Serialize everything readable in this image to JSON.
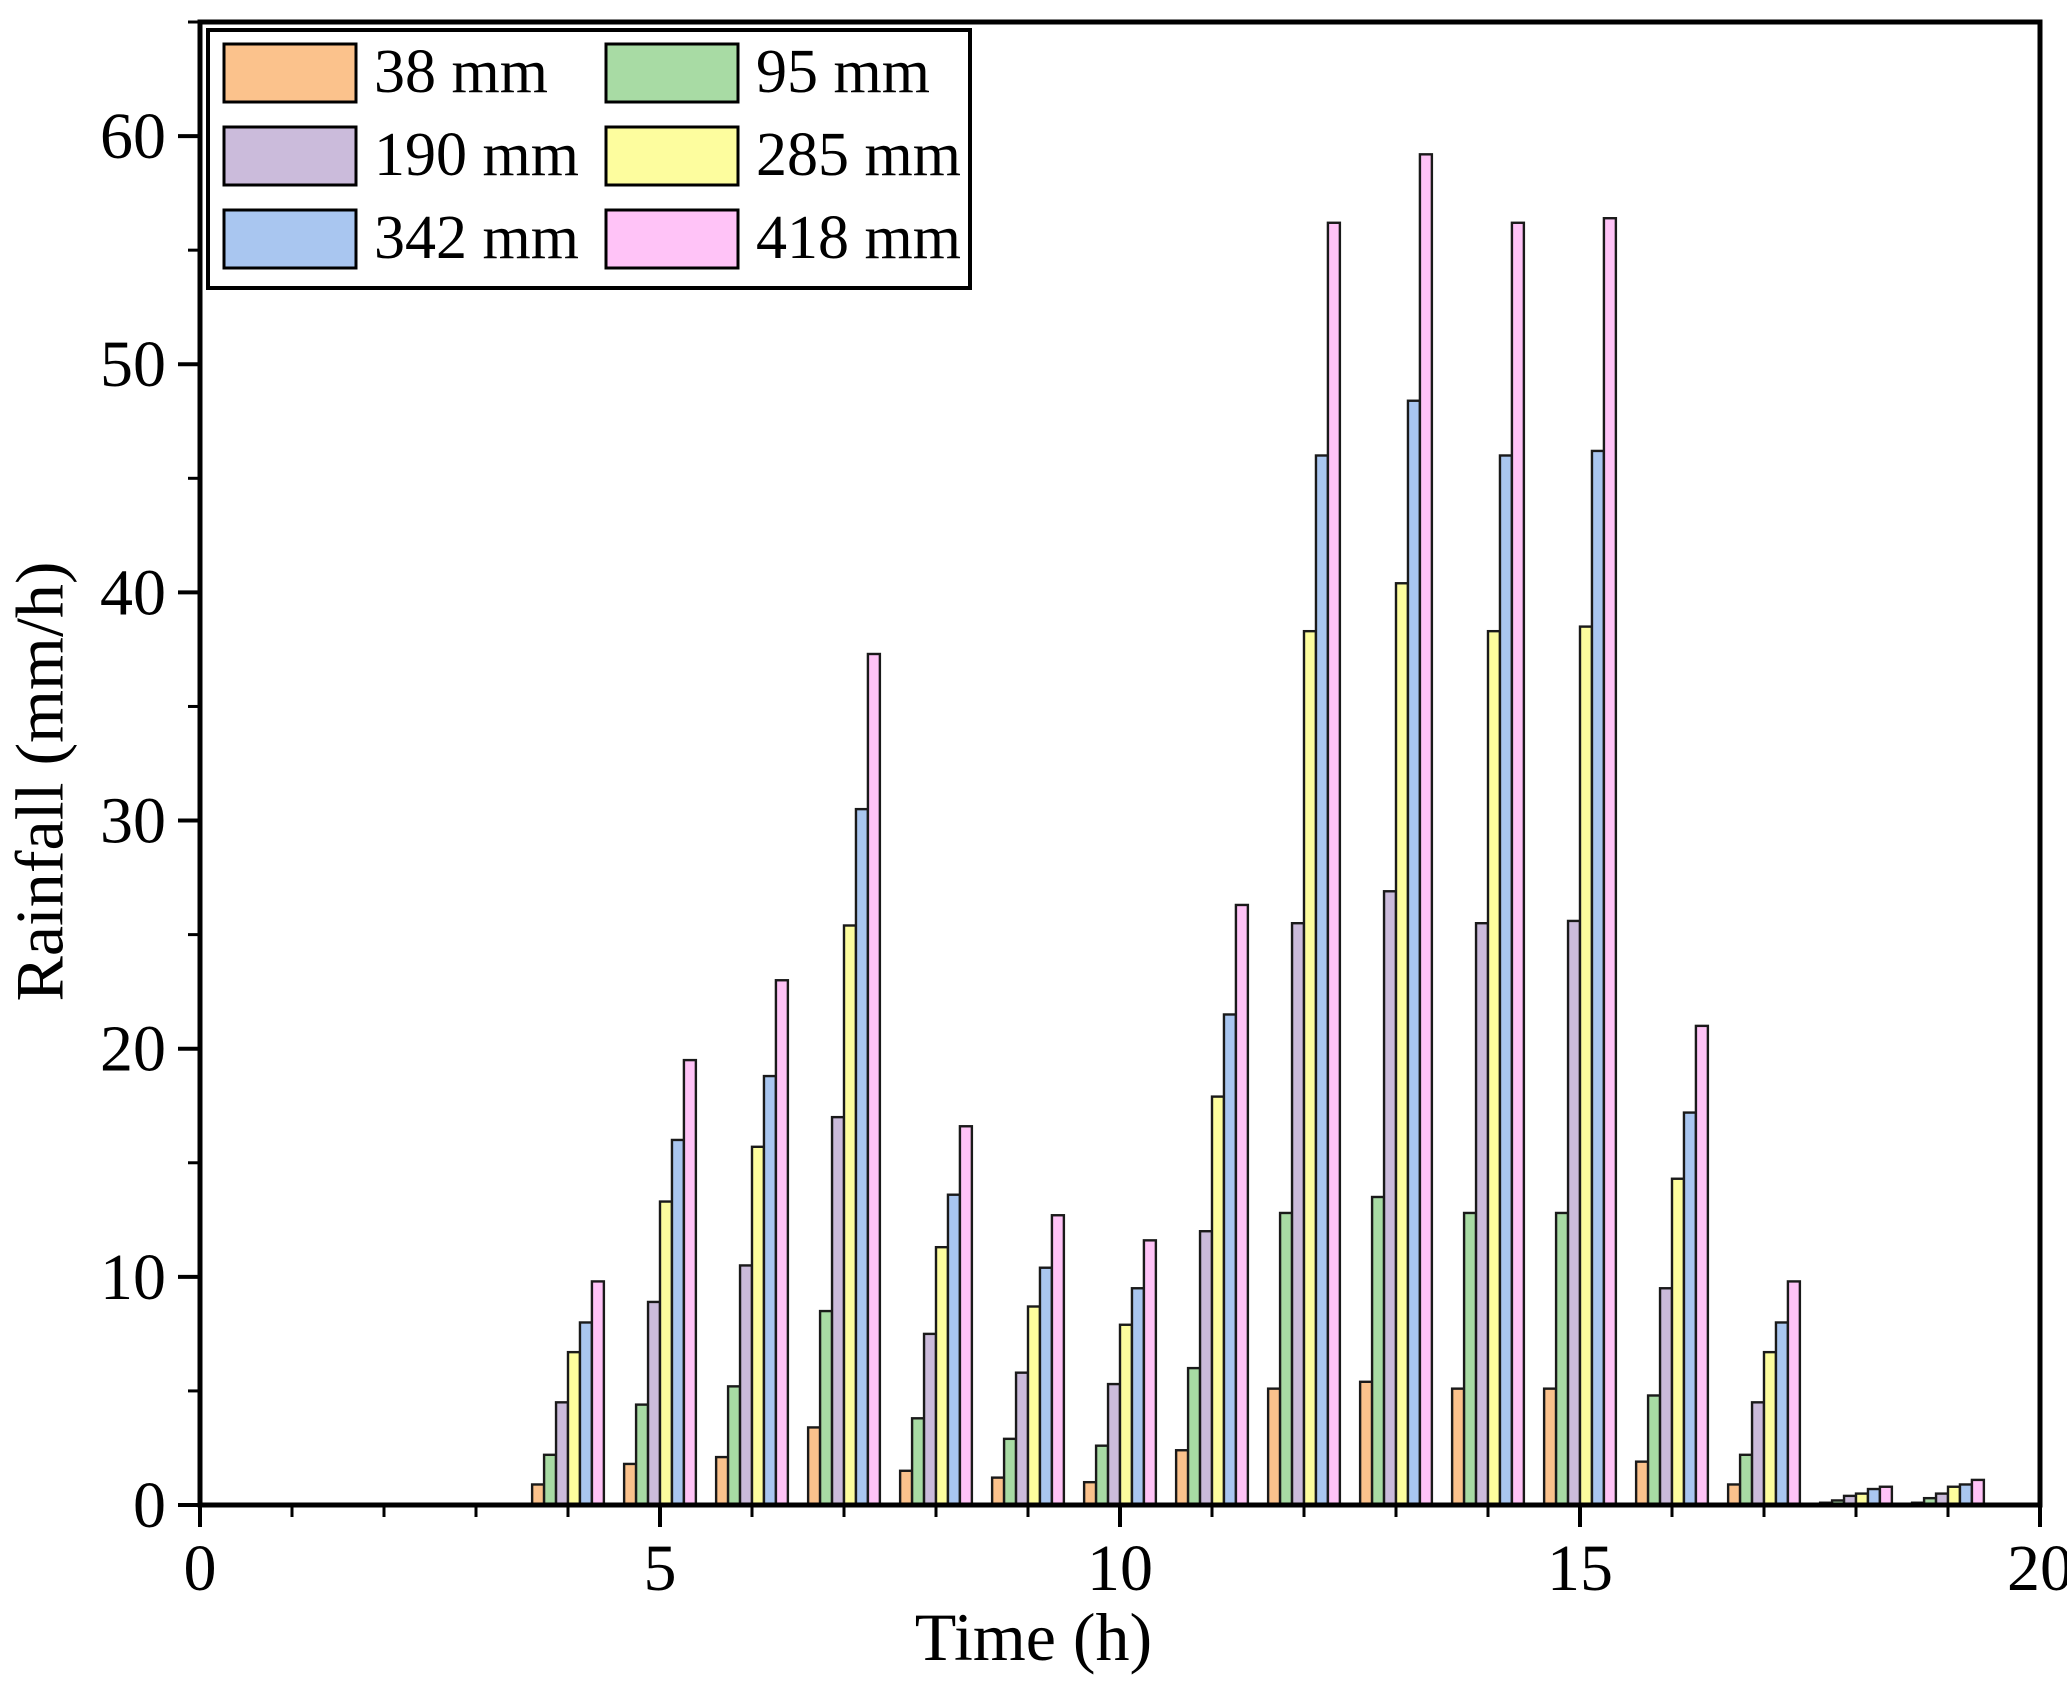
{
  "chart_data": {
    "type": "bar",
    "title": "",
    "xlabel": "Time (h)",
    "ylabel": "Rainfall (mm/h)",
    "xlim": [
      0,
      20
    ],
    "ylim": [
      0,
      65
    ],
    "x_major_ticks": [
      0,
      5,
      10,
      15,
      20
    ],
    "x_minor_step": 1,
    "y_major_ticks": [
      0,
      10,
      20,
      30,
      40,
      50,
      60
    ],
    "y_minor_step": 5,
    "grid": false,
    "legend_position": "top-left",
    "bar_outline_color": "#1a1a1a",
    "frame_color": "#000000",
    "categories": [
      4,
      5,
      6,
      7,
      8,
      9,
      10,
      11,
      12,
      13,
      14,
      15,
      16,
      17,
      18,
      19
    ],
    "series": [
      {
        "name": "38 mm",
        "color": "#FBC28C",
        "values": [
          0.9,
          1.8,
          2.1,
          3.4,
          1.5,
          1.2,
          1.0,
          2.4,
          5.1,
          5.4,
          5.1,
          5.1,
          1.9,
          0.9,
          0.1,
          0.1
        ]
      },
      {
        "name": "95 mm",
        "color": "#A8DBA4",
        "values": [
          2.2,
          4.4,
          5.2,
          8.5,
          3.8,
          2.9,
          2.6,
          6.0,
          12.8,
          13.5,
          12.8,
          12.8,
          4.8,
          2.2,
          0.2,
          0.3
        ]
      },
      {
        "name": "190 mm",
        "color": "#CBBBDB",
        "values": [
          4.5,
          8.9,
          10.5,
          17.0,
          7.5,
          5.8,
          5.3,
          12.0,
          25.5,
          26.9,
          25.5,
          25.6,
          9.5,
          4.5,
          0.4,
          0.5
        ]
      },
      {
        "name": "285 mm",
        "color": "#FDFD9E",
        "values": [
          6.7,
          13.3,
          15.7,
          25.4,
          11.3,
          8.7,
          7.9,
          17.9,
          38.3,
          40.4,
          38.3,
          38.5,
          14.3,
          6.7,
          0.5,
          0.8
        ]
      },
      {
        "name": "342 mm",
        "color": "#A9C6F0",
        "values": [
          8.0,
          16.0,
          18.8,
          30.5,
          13.6,
          10.4,
          9.5,
          21.5,
          46.0,
          48.4,
          46.0,
          46.2,
          17.2,
          8.0,
          0.7,
          0.9
        ]
      },
      {
        "name": "418 mm",
        "color": "#FFC3F7",
        "values": [
          9.8,
          19.5,
          23.0,
          37.3,
          16.6,
          12.7,
          11.6,
          26.3,
          56.2,
          59.2,
          56.2,
          56.4,
          21.0,
          9.8,
          0.8,
          1.1
        ]
      }
    ]
  }
}
